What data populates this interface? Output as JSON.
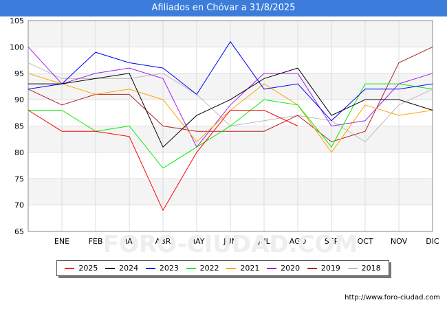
{
  "header": {
    "title": "Afiliados en Chóvar a 31/8/2025"
  },
  "footer": {
    "url": "http://www.foro-ciudad.com"
  },
  "watermark": "FORO-CIUDAD.COM",
  "chart_data": {
    "type": "line",
    "title": "Afiliados en Chóvar a 31/8/2025",
    "xlabel": "",
    "ylabel": "",
    "categories": [
      "",
      "ENE",
      "FEB",
      "MAR",
      "ABR",
      "MAY",
      "JUN",
      "JUL",
      "AGO",
      "SEP",
      "OCT",
      "NOV",
      "DIC"
    ],
    "ylim": [
      65,
      105
    ],
    "yticks": [
      65,
      70,
      75,
      80,
      85,
      90,
      95,
      100,
      105
    ],
    "grid": true,
    "legend_position": "bottom",
    "series": [
      {
        "name": "2025",
        "color": "#ff0000",
        "values": [
          88,
          84,
          84,
          83,
          69,
          80,
          88,
          88,
          85,
          null,
          null,
          null,
          null
        ]
      },
      {
        "name": "2024",
        "color": "#000000",
        "values": [
          93,
          93,
          94,
          95,
          81,
          87,
          90,
          94,
          96,
          87,
          90,
          90,
          88
        ]
      },
      {
        "name": "2023",
        "color": "#0000ff",
        "values": [
          92,
          93,
          99,
          97,
          96,
          91,
          101,
          92,
          93,
          86,
          92,
          92,
          93
        ]
      },
      {
        "name": "2022",
        "color": "#00ee00",
        "values": [
          88,
          88,
          84,
          85,
          77,
          81,
          85,
          90,
          89,
          81,
          93,
          93,
          92
        ]
      },
      {
        "name": "2021",
        "color": "#ffa500",
        "values": [
          95,
          93,
          91,
          92,
          90,
          82,
          88,
          93,
          89,
          80,
          89,
          87,
          88
        ]
      },
      {
        "name": "2020",
        "color": "#a020f0",
        "values": [
          100,
          93,
          95,
          96,
          94,
          81,
          89,
          95,
          95,
          85,
          86,
          93,
          95
        ]
      },
      {
        "name": "2019",
        "color": "#b22222",
        "values": [
          92,
          89,
          91,
          91,
          85,
          84,
          84,
          84,
          87,
          82,
          84,
          97,
          100
        ]
      },
      {
        "name": "2018",
        "color": "#bbbbbb",
        "values": [
          97,
          94,
          94,
          94,
          95,
          91,
          85,
          86,
          87,
          86,
          82,
          89,
          92
        ]
      }
    ]
  }
}
